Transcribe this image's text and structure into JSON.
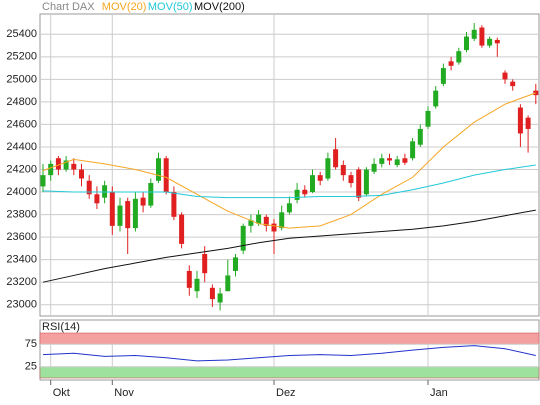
{
  "chart_data": [
    {
      "type": "candlestick",
      "title": "Chart DAX",
      "categories": [
        null,
        "Okt",
        null,
        null,
        null,
        null,
        null,
        null,
        null,
        "Nov",
        null,
        null,
        null,
        null,
        null,
        null,
        null,
        null,
        null,
        null,
        null,
        null,
        null,
        null,
        null,
        null,
        null,
        null,
        null,
        null,
        "Dez",
        null,
        null,
        null,
        null,
        null,
        null,
        null,
        null,
        null,
        null,
        null,
        null,
        null,
        null,
        null,
        null,
        null,
        null,
        null,
        "Jan",
        null,
        null,
        null,
        null,
        null,
        null,
        null,
        null,
        null,
        null,
        null,
        null,
        null,
        null
      ],
      "open": [
        24050,
        24150,
        24300,
        24200,
        24250,
        24200,
        24100,
        23980,
        23950,
        24000,
        23700,
        23920,
        23680,
        23950,
        23880,
        24100,
        24300,
        24000,
        23800,
        23300,
        23120,
        23450,
        23150,
        23020,
        23120,
        23300,
        23480,
        23700,
        23720,
        23780,
        23720,
        23680,
        23820,
        23930,
        24020,
        24000,
        24150,
        24120,
        24380,
        24240,
        24150,
        24200,
        23980,
        24180,
        24250,
        24300,
        24240,
        24300,
        24300,
        24420,
        24580,
        24760,
        24960,
        25160,
        25150,
        25260,
        25360,
        25460,
        25300,
        25350,
        25060,
        24980,
        24750,
        24660,
        24900
      ],
      "high": [
        24250,
        24280,
        24320,
        24320,
        24300,
        24250,
        24150,
        24050,
        24100,
        24050,
        23950,
        23950,
        24000,
        24000,
        24120,
        24350,
        24320,
        24050,
        23820,
        23350,
        23300,
        23520,
        23180,
        23150,
        23400,
        23450,
        23720,
        23800,
        23840,
        23800,
        23760,
        23880,
        23960,
        24080,
        24060,
        24200,
        24180,
        24350,
        24480,
        24280,
        24180,
        24220,
        24220,
        24300,
        24340,
        24340,
        24320,
        24340,
        24480,
        24600,
        24760,
        24940,
        25140,
        25200,
        25280,
        25420,
        25500,
        25480,
        25380,
        25370,
        25080,
        25000,
        24780,
        24680,
        24960
      ],
      "low": [
        24000,
        24100,
        24150,
        24180,
        24150,
        24050,
        23940,
        23850,
        23900,
        23620,
        23650,
        23450,
        23650,
        23820,
        23860,
        24080,
        23980,
        23750,
        23500,
        23080,
        23060,
        23200,
        22980,
        22950,
        23120,
        23250,
        23450,
        23640,
        23700,
        23650,
        23450,
        23660,
        23800,
        23900,
        23950,
        23990,
        24060,
        24100,
        24200,
        24100,
        24040,
        23920,
        23960,
        24160,
        24220,
        24240,
        24220,
        24240,
        24280,
        24400,
        24560,
        24740,
        24940,
        25080,
        25130,
        25240,
        25340,
        25280,
        25280,
        25200,
        24960,
        24900,
        24400,
        24350,
        24780
      ],
      "close": [
        24150,
        24250,
        24200,
        24280,
        24200,
        24120,
        23980,
        23900,
        24060,
        23700,
        23880,
        23680,
        23940,
        23880,
        24080,
        24300,
        24000,
        23780,
        23540,
        23150,
        23230,
        23280,
        23050,
        23100,
        23260,
        23420,
        23700,
        23750,
        23800,
        23700,
        23650,
        23820,
        23900,
        24020,
        23980,
        24150,
        24100,
        24300,
        24220,
        24150,
        24080,
        23950,
        24200,
        24250,
        24300,
        24280,
        24290,
        24260,
        24450,
        24560,
        24720,
        24900,
        25100,
        25120,
        25250,
        25380,
        25440,
        25300,
        25360,
        25320,
        25000,
        24940,
        24520,
        24560,
        24860
      ],
      "up_color": "#22aa22",
      "down_color": "#e02020",
      "series": [
        {
          "name": "MOV(20)",
          "color": "#f5a623",
          "x": [
            0,
            4,
            8,
            12,
            16,
            20,
            24,
            28,
            32,
            36,
            40,
            44,
            48,
            52,
            56,
            60,
            64
          ],
          "values": [
            24190,
            24290,
            24250,
            24200,
            24130,
            23980,
            23830,
            23720,
            23680,
            23700,
            23800,
            23980,
            24130,
            24400,
            24620,
            24780,
            24880
          ]
        },
        {
          "name": "MOV(50)",
          "color": "#22c8d8",
          "x": [
            0,
            4,
            8,
            12,
            16,
            20,
            24,
            28,
            32,
            36,
            40,
            44,
            48,
            52,
            56,
            60,
            64
          ],
          "values": [
            24010,
            24000,
            24000,
            24000,
            24000,
            23960,
            23950,
            23950,
            23950,
            23960,
            23960,
            23970,
            24020,
            24080,
            24150,
            24200,
            24240
          ]
        },
        {
          "name": "MOV(200)",
          "color": "#111111",
          "x": [
            0,
            4,
            8,
            12,
            16,
            20,
            24,
            28,
            32,
            36,
            40,
            44,
            48,
            52,
            56,
            60,
            64
          ],
          "values": [
            23200,
            23260,
            23320,
            23370,
            23420,
            23460,
            23500,
            23550,
            23590,
            23610,
            23630,
            23650,
            23670,
            23700,
            23740,
            23790,
            23840
          ]
        }
      ],
      "ylim": [
        22900,
        25580
      ],
      "yticks": [
        23000,
        23200,
        23400,
        23600,
        23800,
        24000,
        24200,
        24400,
        24600,
        24800,
        25000,
        25200,
        25400
      ],
      "grid": true
    },
    {
      "type": "line",
      "title": "RSI(14)",
      "zones": [
        {
          "from": 75,
          "to": 100,
          "color": "#f4a0a0"
        },
        {
          "from": 0,
          "to": 25,
          "color": "#9ee09e"
        }
      ],
      "series": [
        {
          "color": "#2233cc",
          "x": [
            0,
            4,
            8,
            12,
            16,
            20,
            24,
            28,
            32,
            36,
            40,
            44,
            48,
            52,
            56,
            60,
            64
          ],
          "values": [
            52,
            55,
            48,
            50,
            45,
            38,
            40,
            45,
            50,
            52,
            50,
            55,
            62,
            68,
            72,
            65,
            50
          ]
        }
      ],
      "ylim": [
        0,
        100
      ],
      "yticks": [
        25,
        75
      ],
      "grid": true
    }
  ]
}
